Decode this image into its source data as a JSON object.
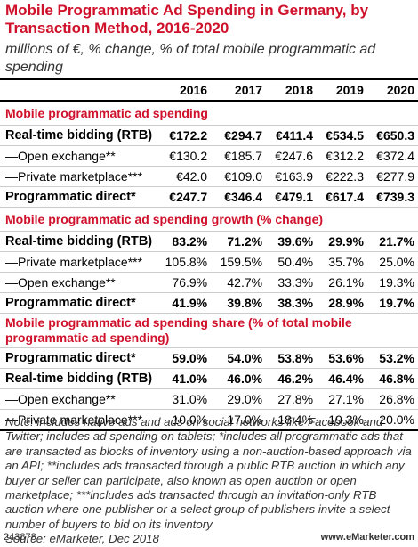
{
  "header": {
    "title": "Mobile Programmatic Ad Spending in Germany, by Transaction Method, 2016-2020",
    "subtitle": "millions of €, % change, % of total mobile programmatic ad spending"
  },
  "table": {
    "columns": [
      "2016",
      "2017",
      "2018",
      "2019",
      "2020"
    ],
    "sections": [
      {
        "title": "Mobile programmatic ad spending",
        "rows": [
          {
            "label": "Real-time bidding (RTB)",
            "bold": true,
            "values": [
              "€172.2",
              "€294.7",
              "€411.4",
              "€534.5",
              "€650.3"
            ]
          },
          {
            "label": "—Open exchange**",
            "bold": false,
            "values": [
              "€130.2",
              "€185.7",
              "€247.6",
              "€312.2",
              "€372.4"
            ]
          },
          {
            "label": "—Private marketplace***",
            "bold": false,
            "values": [
              "€42.0",
              "€109.0",
              "€163.9",
              "€222.3",
              "€277.9"
            ]
          },
          {
            "label": "Programmatic direct*",
            "bold": true,
            "values": [
              "€247.7",
              "€346.4",
              "€479.1",
              "€617.4",
              "€739.3"
            ]
          }
        ]
      },
      {
        "title": "Mobile programmatic ad spending growth (% change)",
        "rows": [
          {
            "label": "Real-time bidding (RTB)",
            "bold": true,
            "values": [
              "83.2%",
              "71.2%",
              "39.6%",
              "29.9%",
              "21.7%"
            ]
          },
          {
            "label": "—Private marketplace***",
            "bold": false,
            "values": [
              "105.8%",
              "159.5%",
              "50.4%",
              "35.7%",
              "25.0%"
            ]
          },
          {
            "label": "—Open exchange**",
            "bold": false,
            "values": [
              "76.9%",
              "42.7%",
              "33.3%",
              "26.1%",
              "19.3%"
            ]
          },
          {
            "label": "Programmatic direct*",
            "bold": true,
            "values": [
              "41.9%",
              "39.8%",
              "38.3%",
              "28.9%",
              "19.7%"
            ]
          }
        ]
      },
      {
        "title": "Mobile programmatic ad spending share (% of total mobile programmatic ad spending)",
        "rows": [
          {
            "label": "Programmatic direct*",
            "bold": true,
            "values": [
              "59.0%",
              "54.0%",
              "53.8%",
              "53.6%",
              "53.2%"
            ]
          },
          {
            "label": "Real-time bidding (RTB)",
            "bold": true,
            "values": [
              "41.0%",
              "46.0%",
              "46.2%",
              "46.4%",
              "46.8%"
            ]
          },
          {
            "label": "—Open exchange**",
            "bold": false,
            "values": [
              "31.0%",
              "29.0%",
              "27.8%",
              "27.1%",
              "26.8%"
            ]
          },
          {
            "label": "—Private marketplace***",
            "bold": false,
            "values": [
              "10.0%",
              "17.0%",
              "18.4%",
              "19.3%",
              "20.0%"
            ]
          }
        ]
      }
    ]
  },
  "note": "Note: includes native ads and ads on social networks like Facebook and Twitter; includes ad spending on tablets; *includes all programmatic ads that are transacted as blocks of inventory using a non-auction-based approach via an API; **includes ads transacted through a public RTB auction in which any buyer or seller can participate, also known as open auction or open marketplace; ***includes ads transacted through an invitation-only RTB auction where one publisher or a select group of publishers invite a select number of buyers to bid on its inventory",
  "source": "Source: eMarketer, Dec 2018",
  "footer": {
    "id": "243878",
    "site": "www.eMarketer.com"
  }
}
